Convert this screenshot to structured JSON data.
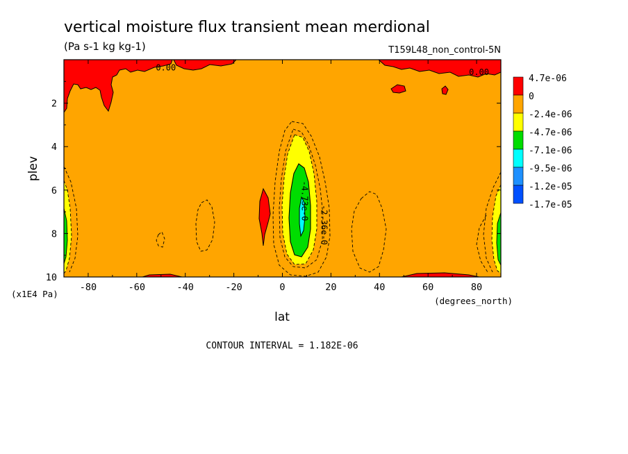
{
  "chart_data": {
    "type": "heatmap",
    "title": "vertical moisture flux transient mean merdional",
    "units": "(Pa s-1 kg kg-1)",
    "run_label": "T159L48_non_control-5N",
    "xlabel": "lat",
    "x_units": "(degrees_north)",
    "ylabel": "plev",
    "y_units": "(x1E4 Pa)",
    "xlim": [
      -90,
      90
    ],
    "ylim": [
      10,
      0
    ],
    "x_ticks": [
      -80,
      -60,
      -40,
      -20,
      0,
      20,
      40,
      60,
      80
    ],
    "x_tick_labels": [
      "-80",
      "-60",
      "-40",
      "-20",
      "0",
      "20",
      "40",
      "60",
      "80"
    ],
    "y_ticks": [
      2,
      4,
      6,
      8,
      10
    ],
    "y_tick_labels": [
      "2",
      "4",
      "6",
      "8",
      "10"
    ],
    "contour_interval_text": "CONTOUR INTERVAL = 1.182E-06",
    "legend": {
      "placement": "right",
      "levels": [
        {
          "label": "4.7e-06",
          "color": "#ff0000"
        },
        {
          "label": "0",
          "color": "#ffa500"
        },
        {
          "label": "-2.4e-06",
          "color": "#ffff00"
        },
        {
          "label": "-4.7e-06",
          "color": "#00dd00"
        },
        {
          "label": "-7.1e-06",
          "color": "#00ffff"
        },
        {
          "label": "-9.5e-06",
          "color": "#1e90ff"
        },
        {
          "label": "-1.2e-05",
          "color": "#0050ff"
        },
        {
          "label": "-1.7e-05",
          "color": ""
        }
      ]
    },
    "background_color": "#ffa500",
    "contour_labels": [
      {
        "text": "0.00",
        "lat": -48,
        "plev": 0.5
      },
      {
        "text": "0.00",
        "lat": 81,
        "plev": 0.7
      },
      {
        "text": "-4.73e-0",
        "lat": 8,
        "plev": 6.5
      },
      {
        "text": "-2.36e-0",
        "lat": 16,
        "plev": 7.6
      }
    ],
    "features": [
      {
        "name": "upper-level positive flux",
        "lat_range": [
          -88,
          88
        ],
        "plev_range": [
          0,
          2.5
        ],
        "value": "> 0"
      },
      {
        "name": "tropical upward moisture flux core",
        "lat_center": 7,
        "plev_center": 7,
        "min_value": -9.5e-06
      },
      {
        "name": "positive cell",
        "lat_center": -7,
        "plev_center": 7,
        "value": "> 0"
      }
    ]
  }
}
